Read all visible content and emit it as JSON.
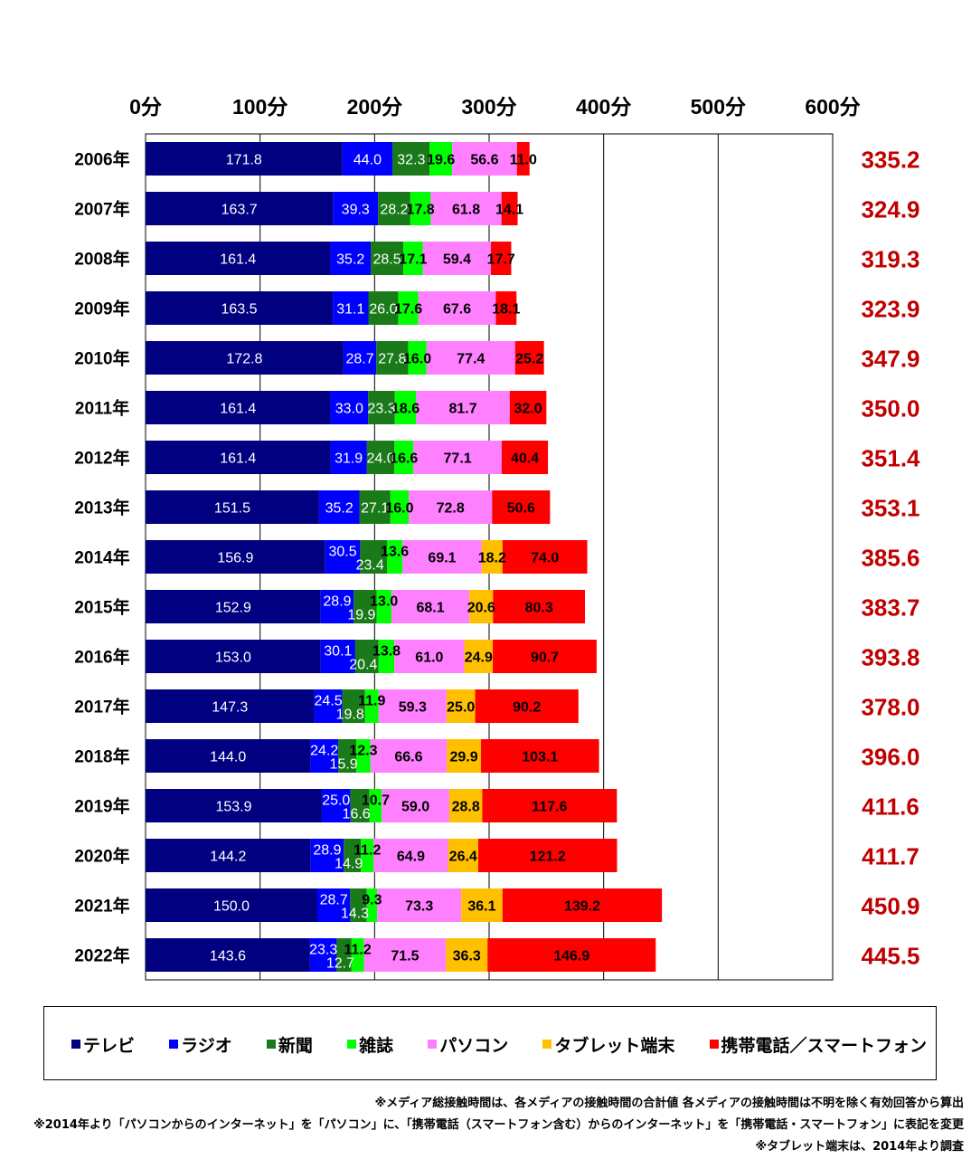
{
  "chart_data": {
    "type": "bar",
    "orientation": "horizontal",
    "stacked": true,
    "x_ticks": [
      "0分",
      "100分",
      "200分",
      "300分",
      "400分",
      "500分",
      "600分"
    ],
    "xlim": [
      0,
      600
    ],
    "categories": [
      "2006年",
      "2007年",
      "2008年",
      "2009年",
      "2010年",
      "2011年",
      "2012年",
      "2013年",
      "2014年",
      "2015年",
      "2016年",
      "2017年",
      "2018年",
      "2019年",
      "2020年",
      "2021年",
      "2022年"
    ],
    "series": [
      {
        "name": "テレビ",
        "color": "#000080",
        "label_color": "#ffffff",
        "values": [
          171.8,
          163.7,
          161.4,
          163.5,
          172.8,
          161.4,
          161.4,
          151.5,
          156.9,
          152.9,
          153.0,
          147.3,
          144.0,
          153.9,
          144.2,
          150.0,
          143.6
        ],
        "labels": [
          "171.8",
          "163.7",
          "161.4",
          "163.5",
          "172.8",
          "161.4",
          "161.4",
          "151.5",
          "156.9",
          "152.9",
          "153.0",
          "147.3",
          "144.0",
          "153.9",
          "144.2",
          "150.0",
          "143.6"
        ]
      },
      {
        "name": "ラジオ",
        "color": "#0000FF",
        "label_color": "#ffffff",
        "values": [
          44.0,
          39.3,
          35.2,
          31.1,
          28.7,
          33.0,
          31.9,
          35.2,
          30.5,
          28.9,
          30.1,
          24.5,
          24.2,
          25.0,
          28.9,
          28.7,
          23.3
        ],
        "labels": [
          "44.0",
          "39.3",
          "35.2",
          "31.1",
          "28.7",
          "33.0",
          "31.9",
          "35.2",
          "30.5",
          "28.9",
          "30.1",
          "24.5",
          "24.2",
          "25.0",
          "28.9",
          "28.7",
          "23.3"
        ]
      },
      {
        "name": "新聞",
        "color": "#1A7A1A",
        "label_color": "#ffffff",
        "values": [
          32.3,
          28.2,
          28.5,
          26.0,
          27.8,
          23.3,
          24.0,
          27.1,
          23.4,
          19.9,
          20.4,
          19.8,
          15.9,
          16.6,
          14.9,
          14.3,
          12.7
        ],
        "labels": [
          "32.3",
          "28.2",
          "28.5",
          "26.0",
          "27.8",
          "23.3",
          "24.0",
          "27.1",
          "23.4",
          "19.9",
          "20.4",
          "19.8",
          "15.9",
          "16.6",
          "14.9",
          "14.3",
          "12.7"
        ]
      },
      {
        "name": "雑誌",
        "color": "#00FF00",
        "label_color": "#000000",
        "values": [
          19.6,
          17.8,
          17.1,
          17.6,
          16.0,
          18.6,
          16.6,
          16.0,
          13.6,
          13.0,
          13.8,
          11.9,
          12.3,
          10.7,
          11.2,
          9.3,
          11.2
        ],
        "labels": [
          "19.6",
          "17.8",
          "17.1",
          "17.6",
          "16.0",
          "18.6",
          "16.6",
          "16.0",
          "13.6",
          "13.0",
          "13.8",
          "11.9",
          "12.3",
          "10.7",
          "11.2",
          "9.3",
          "11.2"
        ]
      },
      {
        "name": "パソコン",
        "color": "#FF80FF",
        "label_color": "#000000",
        "values": [
          56.6,
          61.8,
          59.4,
          67.6,
          77.4,
          81.7,
          77.1,
          72.8,
          69.1,
          68.1,
          61.0,
          59.3,
          66.6,
          59.0,
          64.9,
          73.3,
          71.5
        ],
        "labels": [
          "56.6",
          "61.8",
          "59.4",
          "67.6",
          "77.4",
          "81.7",
          "77.1",
          "72.8",
          "69.1",
          "68.1",
          "61.0",
          "59.3",
          "66.6",
          "59.0",
          "64.9",
          "73.3",
          "71.5"
        ]
      },
      {
        "name": "タブレット端末",
        "color": "#FFC000",
        "label_color": "#000000",
        "values": [
          0,
          0,
          0,
          0,
          0,
          0,
          0,
          0,
          18.2,
          20.6,
          24.9,
          25.0,
          29.9,
          28.8,
          26.4,
          36.1,
          36.3
        ],
        "labels": [
          "",
          "",
          "",
          "",
          "",
          "",
          "",
          "",
          "18.2",
          "20.6",
          "24.9",
          "25.0",
          "29.9",
          "28.8",
          "26.4",
          "36.1",
          "36.3"
        ]
      },
      {
        "name": "携帯電話／スマートフォン",
        "color": "#FF0000",
        "label_color": "#000000",
        "values": [
          11.0,
          14.1,
          17.7,
          18.1,
          25.2,
          32.0,
          40.4,
          50.6,
          74.0,
          80.3,
          90.7,
          90.2,
          103.1,
          117.6,
          121.2,
          139.2,
          146.9
        ],
        "labels": [
          "11.0",
          "14.1",
          "17.7",
          "18.1",
          "25.2",
          "32.0",
          "40.4",
          "50.6",
          "74.0",
          "80.3",
          "90.7",
          "90.2",
          "103.1",
          "117.6",
          "121.2",
          "139.2",
          "146.9"
        ]
      }
    ],
    "totals": [
      "335.2",
      "324.9",
      "319.3",
      "323.9",
      "347.9",
      "350.0",
      "351.4",
      "353.1",
      "385.6",
      "383.7",
      "393.8",
      "378.0",
      "396.0",
      "411.6",
      "411.7",
      "450.9",
      "445.5"
    ],
    "totals_color": "#C00000",
    "grid": true,
    "legend_position": "bottom"
  },
  "notes": [
    "※メディア総接触時間は、各メディアの接触時間の合計値  各メディアの接触時間は不明を除く有効回答から算出",
    "※2014年より「パソコンからのインターネット」を「パソコン」に、「携帯電話（スマートフォン含む）からのインターネット」を「携帯電話・スマートフォン」に表記を変更",
    "※タブレット端末は、2014年より調査"
  ]
}
